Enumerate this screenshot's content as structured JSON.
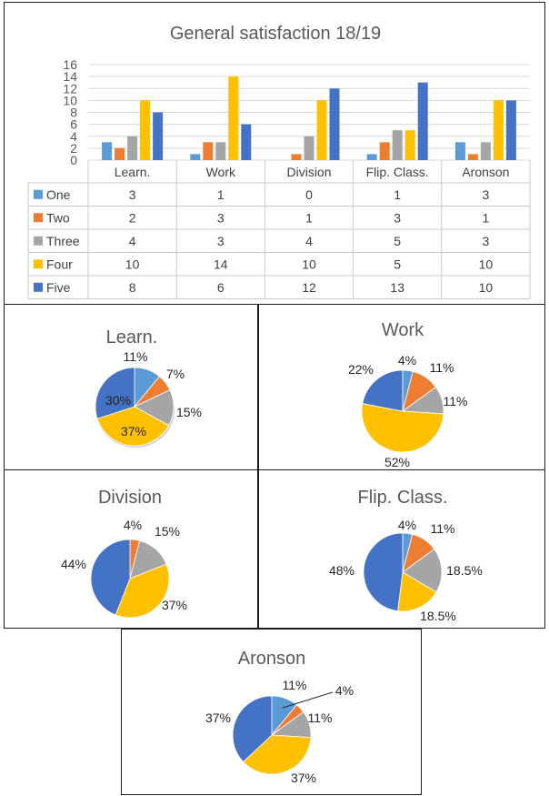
{
  "chart_data": [
    {
      "type": "bar",
      "title": "General satisfaction 18/19",
      "categories": [
        "Learn.",
        "Work",
        "Division",
        "Flip. Class.",
        "Aronson"
      ],
      "ylim": [
        0,
        16
      ],
      "yticks": [
        0,
        2,
        4,
        6,
        8,
        10,
        12,
        14,
        16
      ],
      "grid": true,
      "legend": "data-table",
      "series": [
        {
          "name": "One",
          "color": "#5B9BD5",
          "values": [
            3,
            1,
            0,
            1,
            3
          ]
        },
        {
          "name": "Two",
          "color": "#ED7D31",
          "values": [
            2,
            3,
            1,
            3,
            1
          ]
        },
        {
          "name": "Three",
          "color": "#A5A5A5",
          "values": [
            4,
            3,
            4,
            5,
            3
          ]
        },
        {
          "name": "Four",
          "color": "#FFC000",
          "values": [
            10,
            14,
            10,
            5,
            10
          ]
        },
        {
          "name": "Five",
          "color": "#4472C4",
          "values": [
            8,
            6,
            12,
            13,
            10
          ]
        }
      ]
    },
    {
      "type": "pie",
      "title": "Learn.",
      "categories": [
        "One",
        "Two",
        "Three",
        "Four",
        "Five"
      ],
      "values": [
        11,
        7,
        15,
        37,
        30
      ],
      "labels": [
        "11%",
        "7%",
        "15%",
        "37%",
        "30%"
      ]
    },
    {
      "type": "pie",
      "title": "Work",
      "categories": [
        "One",
        "Two",
        "Three",
        "Four",
        "Five"
      ],
      "values": [
        4,
        11,
        11,
        52,
        22
      ],
      "labels": [
        "4%",
        "11%",
        "11%",
        "52%",
        "22%"
      ]
    },
    {
      "type": "pie",
      "title": "Division",
      "categories": [
        "One",
        "Two",
        "Three",
        "Four",
        "Five"
      ],
      "values": [
        0,
        4,
        15,
        37,
        44
      ],
      "labels": [
        "",
        "4%",
        "15%",
        "37%",
        "44%"
      ]
    },
    {
      "type": "pie",
      "title": "Flip. Class.",
      "categories": [
        "One",
        "Two",
        "Three",
        "Four",
        "Five"
      ],
      "values": [
        4,
        11,
        18.5,
        18.5,
        48
      ],
      "labels": [
        "4%",
        "11%",
        "18.5%",
        "18.5%",
        "48%"
      ]
    },
    {
      "type": "pie",
      "title": "Aronson",
      "categories": [
        "One",
        "Two",
        "Three",
        "Four",
        "Five"
      ],
      "values": [
        11,
        4,
        11,
        37,
        37
      ],
      "labels": [
        "11%",
        "4%",
        "11%",
        "37%",
        "37%"
      ]
    }
  ]
}
